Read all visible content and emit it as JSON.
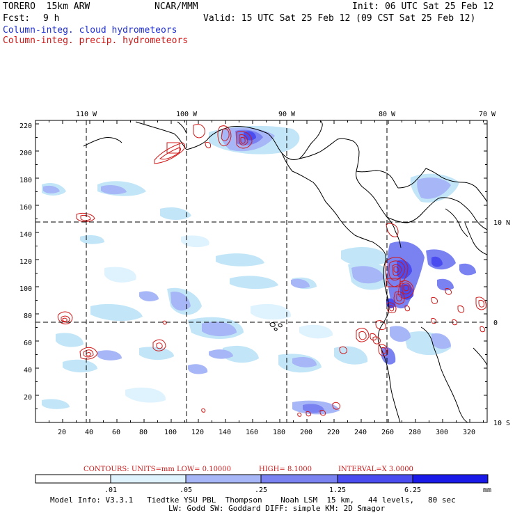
{
  "header": {
    "model": "TORERO  15km ARW",
    "org": "NCAR/MMM",
    "init": "Init: 06 UTC Sat 25 Feb 12",
    "fcst_label": "Fcst:",
    "fcst_value": "9 h",
    "valid": "Valid: 15 UTC Sat 25 Feb 12 (09 CST Sat 25 Feb 12)"
  },
  "legend_titles": {
    "cloud": "Column-integ. cloud hydrometeors",
    "precip": "Column-integ. precip. hydrometeors"
  },
  "colors": {
    "shade_1": "#dff3ff",
    "shade_2": "#c2e6f8",
    "shade_3": "#a7b6f6",
    "shade_4": "#7a82f2",
    "shade_5": "#4a4cf0",
    "shade_6": "#1a1ae8",
    "contour": "#d01818",
    "coast": "#000000"
  },
  "map": {
    "lon_labels": [
      "110 W",
      "100 W",
      "90 W",
      "80 W",
      "70 W"
    ],
    "lat_labels": [
      "10 N",
      "0",
      "10 S"
    ],
    "y_ticks": [
      "20",
      "40",
      "60",
      "80",
      "100",
      "120",
      "140",
      "160",
      "180",
      "200",
      "220"
    ],
    "x_ticks": [
      "20",
      "40",
      "60",
      "80",
      "100",
      "120",
      "140",
      "160",
      "180",
      "200",
      "220",
      "240",
      "260",
      "280",
      "300",
      "320"
    ]
  },
  "contour_info": {
    "label": "CONTOURS:  UNITS=mm  LOW= 0.10000",
    "high": "HIGH=  8.1000",
    "interval": "INTERVAL=X  3.0000"
  },
  "colorbar": {
    "labels": [
      ".01",
      ".05",
      ".25",
      "1.25",
      "6.25"
    ],
    "unit": "mm"
  },
  "footer": {
    "line1": "Model Info: V3.3.1   Tiedtke YSU PBL  Thompson    Noah LSM  15 km,   44 levels,   80 sec",
    "line2": "LW: Godd SW: Goddard DIFF: simple KM: 2D Smagor"
  }
}
